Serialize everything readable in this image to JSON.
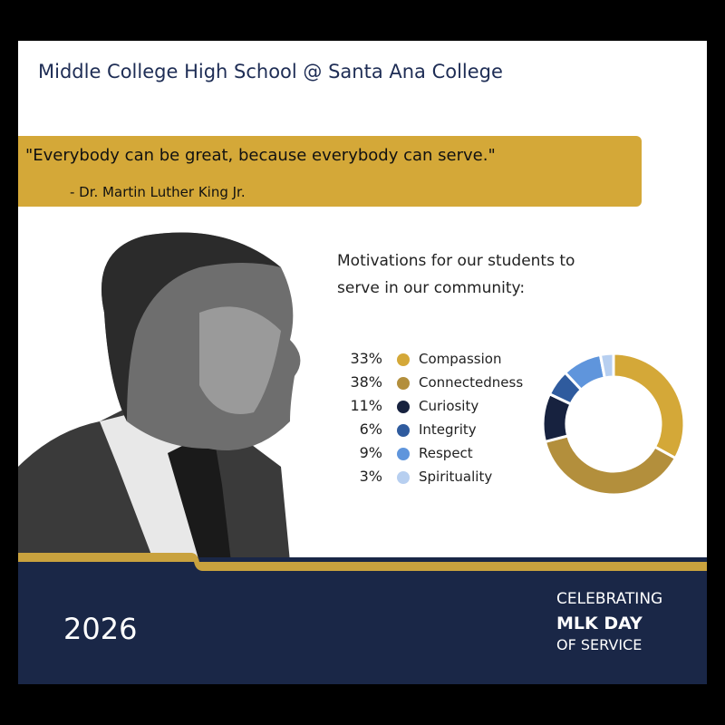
{
  "header": {
    "title": "Middle College High School @ Santa Ana College"
  },
  "quote": {
    "text": "\"Everybody can be great, because everybody can serve.\"",
    "author": "- Dr. Martin Luther King Jr."
  },
  "chart_data": {
    "type": "donut",
    "title": "Motivations for our students to serve in our community:",
    "categories": [
      "Compassion",
      "Connectedness",
      "Curiosity",
      "Integrity",
      "Respect",
      "Spirituality"
    ],
    "values": [
      33,
      38,
      11,
      6,
      9,
      3
    ],
    "value_labels": [
      "33%",
      "38%",
      "11%",
      "6%",
      "9%",
      "3%"
    ],
    "colors": [
      "#d4a838",
      "#b38f3c",
      "#17223f",
      "#2f5b9e",
      "#5f95dc",
      "#b7cff0"
    ]
  },
  "footer": {
    "year": "2026",
    "line1": "CELEBRATING",
    "line2": "MLK DAY",
    "line3": "OF SERVICE"
  }
}
